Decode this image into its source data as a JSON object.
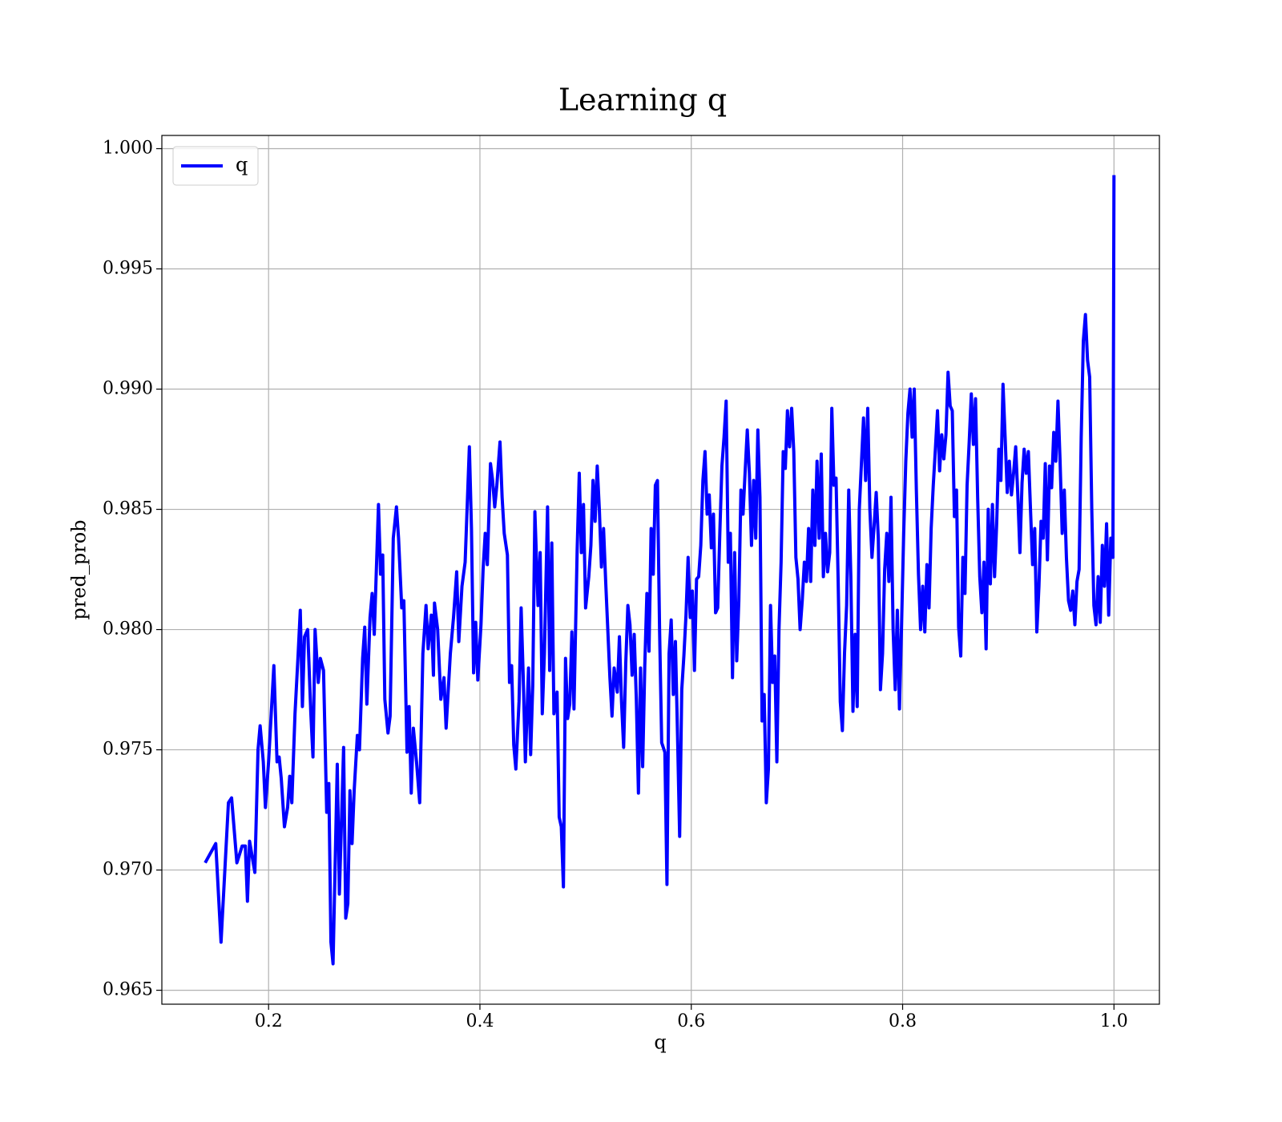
{
  "chart_data": {
    "type": "line",
    "title": "Learning q",
    "xlabel": "q",
    "ylabel": "pred_prob",
    "xlim": [
      0.099,
      1.043
    ],
    "ylim": [
      0.96442,
      1.00055
    ],
    "xticks": [
      0.2,
      0.4,
      0.6,
      0.8,
      {
        "value": 1,
        "label": "1.0"
      }
    ],
    "yticks": [
      0.965,
      {
        "value": 0.97,
        "label": "0.970"
      },
      0.975,
      {
        "value": 0.98,
        "label": "0.980"
      },
      0.985,
      {
        "value": 0.99,
        "label": "0.990"
      },
      0.995,
      {
        "value": 1,
        "label": "1.000"
      }
    ],
    "grid": true,
    "legend": "upper left",
    "x": [
      0.14,
      0.15,
      0.155,
      0.162,
      0.165,
      0.17,
      0.175,
      0.178,
      0.18,
      0.182,
      0.187,
      0.19,
      0.192,
      0.195,
      0.197,
      0.2,
      0.205,
      0.208,
      0.21,
      0.212,
      0.215,
      0.218,
      0.22,
      0.222,
      0.225,
      0.228,
      0.23,
      0.232,
      0.234,
      0.237,
      0.24,
      0.242,
      0.244,
      0.247,
      0.249,
      0.252,
      0.255,
      0.257,
      0.259,
      0.261,
      0.265,
      0.267,
      0.271,
      0.273,
      0.275,
      0.277,
      0.279,
      0.281,
      0.284,
      0.286,
      0.289,
      0.291,
      0.293,
      0.296,
      0.298,
      0.3,
      0.304,
      0.306,
      0.308,
      0.31,
      0.313,
      0.315,
      0.318,
      0.321,
      0.323,
      0.326,
      0.328,
      0.331,
      0.333,
      0.335,
      0.337,
      0.34,
      0.343,
      0.346,
      0.349,
      0.351,
      0.354,
      0.356,
      0.357,
      0.36,
      0.363,
      0.366,
      0.368,
      0.372,
      0.375,
      0.378,
      0.38,
      0.383,
      0.386,
      0.39,
      0.392,
      0.394,
      0.396,
      0.398,
      0.401,
      0.403,
      0.405,
      0.407,
      0.41,
      0.412,
      0.414,
      0.416,
      0.419,
      0.421,
      0.423,
      0.426,
      0.428,
      0.43,
      0.432,
      0.434,
      0.437,
      0.439,
      0.441,
      0.443,
      0.446,
      0.448,
      0.45,
      0.452,
      0.455,
      0.457,
      0.459,
      0.461,
      0.464,
      0.466,
      0.468,
      0.47,
      0.473,
      0.475,
      0.477,
      0.479,
      0.481,
      0.483,
      0.485,
      0.487,
      0.489,
      0.492,
      0.494,
      0.496,
      0.498,
      0.5,
      0.503,
      0.505,
      0.507,
      0.509,
      0.511,
      0.513,
      0.515,
      0.517,
      0.519,
      0.521,
      0.523,
      0.525,
      0.527,
      0.53,
      0.532,
      0.534,
      0.536,
      0.538,
      0.54,
      0.542,
      0.544,
      0.546,
      0.548,
      0.55,
      0.552,
      0.554,
      0.556,
      0.558,
      0.56,
      0.562,
      0.564,
      0.566,
      0.568,
      0.57,
      0.572,
      0.575,
      0.577,
      0.579,
      0.581,
      0.583,
      0.585,
      0.587,
      0.589,
      0.591,
      0.593,
      0.595,
      0.597,
      0.599,
      0.601,
      0.603,
      0.605,
      0.607,
      0.609,
      0.611,
      0.613,
      0.615,
      0.617,
      0.619,
      0.621,
      0.623,
      0.625,
      0.627,
      0.629,
      0.631,
      0.633,
      0.635,
      0.637,
      0.639,
      0.641,
      0.643,
      0.645,
      0.647,
      0.649,
      0.651,
      0.653,
      0.655,
      0.657,
      0.659,
      0.661,
      0.663,
      0.665,
      0.667,
      0.669,
      0.671,
      0.673,
      0.675,
      0.677,
      0.679,
      0.681,
      0.683,
      0.685,
      0.687,
      0.689,
      0.691,
      0.693,
      0.695,
      0.697,
      0.699,
      0.701,
      0.703,
      0.705,
      0.707,
      0.709,
      0.711,
      0.713,
      0.715,
      0.717,
      0.719,
      0.721,
      0.723,
      0.725,
      0.727,
      0.729,
      0.731,
      0.733,
      0.735,
      0.737,
      0.739,
      0.741,
      0.743,
      0.745,
      0.747,
      0.749,
      0.751,
      0.753,
      0.755,
      0.757,
      0.759,
      0.761,
      0.763,
      0.765,
      0.767,
      0.769,
      0.771,
      0.773,
      0.775,
      0.777,
      0.779,
      0.781,
      0.783,
      0.785,
      0.787,
      0.789,
      0.791,
      0.793,
      0.795,
      0.797,
      0.799,
      0.801,
      0.803,
      0.805,
      0.807,
      0.809,
      0.811,
      0.813,
      0.815,
      0.817,
      0.819,
      0.821,
      0.823,
      0.825,
      0.827,
      0.829,
      0.831,
      0.833,
      0.835,
      0.837,
      0.839,
      0.841,
      0.843,
      0.845,
      0.847,
      0.849,
      0.851,
      0.853,
      0.855,
      0.857,
      0.859,
      0.861,
      0.863,
      0.865,
      0.867,
      0.869,
      0.871,
      0.873,
      0.875,
      0.877,
      0.879,
      0.881,
      0.883,
      0.885,
      0.887,
      0.889,
      0.891,
      0.893,
      0.895,
      0.897,
      0.899,
      0.901,
      0.903,
      0.905,
      0.907,
      0.909,
      0.911,
      0.913,
      0.915,
      0.917,
      0.919,
      0.921,
      0.923,
      0.925,
      0.927,
      0.929,
      0.931,
      0.933,
      0.935,
      0.937,
      0.939,
      0.941,
      0.943,
      0.945,
      0.947,
      0.949,
      0.951,
      0.953,
      0.955,
      0.957,
      0.959,
      0.961,
      0.963,
      0.965,
      0.967,
      0.969,
      0.971,
      0.973,
      0.975,
      0.977,
      0.979,
      0.981,
      0.983,
      0.985,
      0.987,
      0.989,
      0.991,
      0.993,
      0.995,
      0.997,
      0.999,
      1.0
    ],
    "series": [
      {
        "name": "q",
        "color": "#0000ff",
        "values": [
          0.9703,
          0.9711,
          0.967,
          0.9728,
          0.973,
          0.9703,
          0.971,
          0.971,
          0.9687,
          0.9712,
          0.9699,
          0.975,
          0.976,
          0.9745,
          0.9726,
          0.9745,
          0.9785,
          0.9745,
          0.9747,
          0.9738,
          0.9718,
          0.9726,
          0.9739,
          0.9728,
          0.9765,
          0.979,
          0.9808,
          0.9768,
          0.9797,
          0.98,
          0.9765,
          0.9747,
          0.98,
          0.9778,
          0.9788,
          0.9783,
          0.9724,
          0.9736,
          0.967,
          0.9661,
          0.9744,
          0.969,
          0.9751,
          0.968,
          0.9686,
          0.9733,
          0.9711,
          0.9733,
          0.9756,
          0.975,
          0.9788,
          0.9801,
          0.9769,
          0.9805,
          0.9815,
          0.9798,
          0.9852,
          0.9823,
          0.9831,
          0.9771,
          0.9757,
          0.9764,
          0.9838,
          0.9851,
          0.9838,
          0.9809,
          0.9812,
          0.9749,
          0.9768,
          0.9732,
          0.9759,
          0.9745,
          0.9728,
          0.979,
          0.981,
          0.9792,
          0.9806,
          0.9781,
          0.9811,
          0.98,
          0.9771,
          0.978,
          0.9759,
          0.979,
          0.9805,
          0.9824,
          0.9795,
          0.9818,
          0.9828,
          0.9876,
          0.9842,
          0.9782,
          0.9803,
          0.9779,
          0.9802,
          0.9825,
          0.984,
          0.9827,
          0.9869,
          0.9862,
          0.9851,
          0.986,
          0.9878,
          0.9855,
          0.984,
          0.9831,
          0.9778,
          0.9785,
          0.9752,
          0.9742,
          0.977,
          0.9809,
          0.978,
          0.9745,
          0.9784,
          0.9748,
          0.9777,
          0.9849,
          0.981,
          0.9832,
          0.9765,
          0.979,
          0.9851,
          0.9783,
          0.9836,
          0.9765,
          0.9774,
          0.9722,
          0.9718,
          0.9693,
          0.9788,
          0.9763,
          0.9769,
          0.9799,
          0.9767,
          0.9833,
          0.9865,
          0.9832,
          0.9852,
          0.9809,
          0.9822,
          0.9835,
          0.9862,
          0.9845,
          0.9868,
          0.985,
          0.9826,
          0.9842,
          0.982,
          0.98,
          0.978,
          0.9764,
          0.9784,
          0.9774,
          0.9797,
          0.977,
          0.9751,
          0.9786,
          0.981,
          0.9802,
          0.9781,
          0.9798,
          0.9771,
          0.9732,
          0.9784,
          0.9743,
          0.9785,
          0.9815,
          0.9791,
          0.9842,
          0.9823,
          0.986,
          0.9862,
          0.98,
          0.9753,
          0.9749,
          0.9694,
          0.979,
          0.9804,
          0.9773,
          0.9795,
          0.9756,
          0.9714,
          0.9775,
          0.9789,
          0.9806,
          0.983,
          0.9805,
          0.9816,
          0.9783,
          0.9821,
          0.9822,
          0.9835,
          0.9862,
          0.9874,
          0.9848,
          0.9856,
          0.9834,
          0.9848,
          0.9807,
          0.9809,
          0.984,
          0.9868,
          0.988,
          0.9895,
          0.9828,
          0.984,
          0.978,
          0.9832,
          0.9787,
          0.9812,
          0.9858,
          0.9848,
          0.9866,
          0.9883,
          0.9865,
          0.9835,
          0.9862,
          0.9838,
          0.9883,
          0.9855,
          0.9762,
          0.9773,
          0.9728,
          0.9742,
          0.981,
          0.9778,
          0.9789,
          0.9745,
          0.98,
          0.9828,
          0.9874,
          0.9867,
          0.9891,
          0.9876,
          0.9892,
          0.9874,
          0.983,
          0.9821,
          0.98,
          0.9812,
          0.9828,
          0.982,
          0.9842,
          0.982,
          0.9858,
          0.9835,
          0.987,
          0.9838,
          0.9873,
          0.9822,
          0.984,
          0.9824,
          0.9832,
          0.9892,
          0.986,
          0.9863,
          0.982,
          0.977,
          0.9758,
          0.979,
          0.981,
          0.9858,
          0.9822,
          0.9766,
          0.9798,
          0.9768,
          0.985,
          0.9869,
          0.9888,
          0.9862,
          0.9892,
          0.985,
          0.983,
          0.9843,
          0.9857,
          0.9838,
          0.9775,
          0.979,
          0.9825,
          0.984,
          0.982,
          0.9855,
          0.98,
          0.9775,
          0.9808,
          0.9767,
          0.9802,
          0.984,
          0.987,
          0.989,
          0.99,
          0.988,
          0.99,
          0.9858,
          0.9823,
          0.98,
          0.9818,
          0.9799,
          0.9827,
          0.9809,
          0.9842,
          0.986,
          0.9875,
          0.9891,
          0.9866,
          0.9881,
          0.9871,
          0.9881,
          0.9907,
          0.9893,
          0.9891,
          0.9847,
          0.9858,
          0.9801,
          0.9789,
          0.983,
          0.9815,
          0.986,
          0.9878,
          0.9898,
          0.9877,
          0.9896,
          0.9855,
          0.9822,
          0.9807,
          0.9828,
          0.9792,
          0.985,
          0.9819,
          0.9852,
          0.9822,
          0.9844,
          0.9875,
          0.9862,
          0.9902,
          0.988,
          0.9857,
          0.987,
          0.9856,
          0.9865,
          0.9876,
          0.9856,
          0.9832,
          0.9861,
          0.9875,
          0.9865,
          0.9874,
          0.985,
          0.9827,
          0.9842,
          0.9799,
          0.9818,
          0.9845,
          0.9838,
          0.9869,
          0.9829,
          0.9868,
          0.9859,
          0.9882,
          0.987,
          0.9895,
          0.987,
          0.984,
          0.9858,
          0.983,
          0.9812,
          0.9808,
          0.9816,
          0.9802,
          0.982,
          0.9825,
          0.988,
          0.992,
          0.9931,
          0.9912,
          0.9905,
          0.985,
          0.981,
          0.9802,
          0.9822,
          0.9803,
          0.9835,
          0.9818,
          0.9844,
          0.9806,
          0.9838,
          0.983,
          0.9989
        ]
      }
    ]
  }
}
